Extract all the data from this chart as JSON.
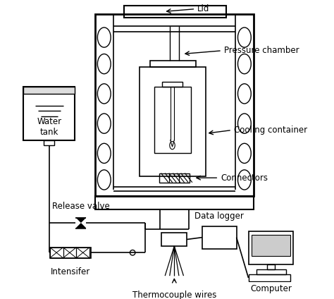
{
  "background_color": "#ffffff",
  "line_color": "#000000",
  "labels": {
    "lid": "Lid",
    "pressure_chamber": "Pressure chamber",
    "cooling_container": "Cooling container",
    "connectors": "Connectors",
    "water_tank": "Water\ntank",
    "release_valve": "Release valve",
    "intensifer": "Intensifer",
    "thermocouple_wires": "Thermocouple wires",
    "data_logger": "Data logger",
    "computer": "Computer"
  },
  "figsize": [
    4.74,
    4.24
  ],
  "dpi": 100
}
